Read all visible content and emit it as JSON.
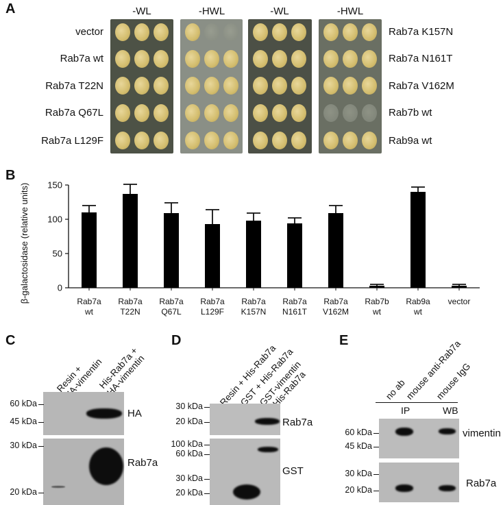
{
  "panels": {
    "a": "A",
    "b": "B",
    "c": "C",
    "d": "D",
    "e": "E"
  },
  "panel_a": {
    "column_headers": [
      "-WL",
      "-HWL",
      "-WL",
      "-HWL"
    ],
    "left_labels": [
      "vector",
      "Rab7a wt",
      "Rab7a T22N",
      "Rab7a Q67L",
      "Rab7a L129F"
    ],
    "right_labels": [
      "Rab7a K157N",
      "Rab7a N161T",
      "Rab7a V162M",
      "Rab7b wt",
      "Rab9a wt"
    ]
  },
  "chart_data": {
    "type": "bar",
    "ylabel": "β-galactosidase (relative units)",
    "ylim": [
      0,
      150
    ],
    "yticks": [
      "0",
      "50",
      "100",
      "150"
    ],
    "categories": [
      {
        "line1": "Rab7a",
        "line2": "wt"
      },
      {
        "line1": "Rab7a",
        "line2": "T22N"
      },
      {
        "line1": "Rab7a",
        "line2": "Q67L"
      },
      {
        "line1": "Rab7a",
        "line2": "L129F"
      },
      {
        "line1": "Rab7a",
        "line2": "K157N"
      },
      {
        "line1": "Rab7a",
        "line2": "N161T"
      },
      {
        "line1": "Rab7a",
        "line2": "V162M"
      },
      {
        "line1": "Rab7b",
        "line2": "wt"
      },
      {
        "line1": "Rab9a",
        "line2": "wt"
      },
      {
        "line1": "vector",
        "line2": ""
      }
    ],
    "values": [
      110,
      137,
      109,
      93,
      98,
      94,
      109,
      3,
      140,
      3
    ],
    "errors": [
      10,
      14,
      15,
      21,
      11,
      8,
      11,
      2,
      7,
      2
    ],
    "color": "#000000"
  },
  "panel_c": {
    "lanes": [
      "Resin +\nHA-vimentin",
      "His-Rab7a +\nHA-vimentin"
    ],
    "markers_top": [
      "60 kDa",
      "45 kDa"
    ],
    "markers_bottom": [
      "30 kDa",
      "20 kDa"
    ],
    "blot_labels": [
      "HA",
      "Rab7a"
    ]
  },
  "panel_d": {
    "lanes": [
      "Resin + His-Rab7a",
      "GST + His-Rab7a",
      "GST-vimentin\n+ His-Rab7a"
    ],
    "markers_top": [
      "30 kDa",
      "20 kDa"
    ],
    "markers_bottom": [
      "100 kDa",
      "60 kDa",
      "30 kDa",
      "20 kDa"
    ],
    "blot_labels": [
      "Rab7a",
      "GST"
    ]
  },
  "panel_e": {
    "lanes": [
      "no ab",
      "mouse anti-Rab7a",
      "mouse IgG"
    ],
    "groups": [
      "IP",
      "WB"
    ],
    "markers_top": [
      "60 kDa",
      "45 kDa"
    ],
    "markers_bottom": [
      "30 kDa",
      "20 kDa"
    ],
    "blot_labels": [
      "vimentin",
      "Rab7a"
    ]
  }
}
